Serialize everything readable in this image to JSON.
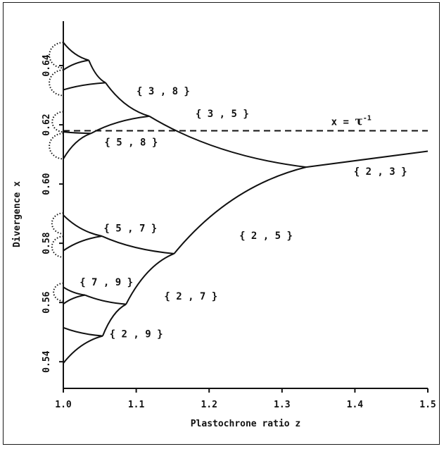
{
  "chart_data": {
    "type": "line",
    "xlabel": "Plastochrone ratio z",
    "ylabel": "Divergence x",
    "xlim": [
      1.0,
      1.5
    ],
    "ylim": [
      0.531,
      0.655
    ],
    "x_ticks": [
      1.0,
      1.1,
      1.2,
      1.3,
      1.4,
      1.5
    ],
    "x_tick_labels": [
      "1.0",
      "1.1",
      "1.2",
      "1.3",
      "1.4",
      "1.5"
    ],
    "y_ticks": [
      0.54,
      0.56,
      0.58,
      0.6,
      0.62,
      0.64
    ],
    "y_tick_labels": [
      "0.54",
      "0.56",
      "0.58",
      "0.60",
      "0.62",
      "0.64"
    ],
    "reference_line": {
      "y": 0.618,
      "label_prefix": "x = ",
      "label_symbol": "τ",
      "label_exp": "-1",
      "style": "dashed"
    },
    "nodes": {
      "n23": {
        "x": 1.333,
        "y": 0.6057
      },
      "n35": {
        "x": 1.118,
        "y": 0.6229
      },
      "n38": {
        "x": 1.058,
        "y": 0.6342
      },
      "n58": {
        "x": 1.038,
        "y": 0.6171
      },
      "n313": {
        "x": 1.035,
        "y": 0.6418
      },
      "n25": {
        "x": 1.152,
        "y": 0.5765
      },
      "n57": {
        "x": 1.053,
        "y": 0.5824
      },
      "n27": {
        "x": 1.086,
        "y": 0.5594
      },
      "n79": {
        "x": 1.03,
        "y": 0.5625
      },
      "n29": {
        "x": 1.054,
        "y": 0.5487
      }
    },
    "branches": [
      {
        "from": "n23",
        "to": [
          1.5,
          0.6111
        ]
      },
      {
        "from": "n23",
        "to": "n35"
      },
      {
        "from": "n23",
        "to": "n25"
      },
      {
        "from": "n35",
        "to": "n38"
      },
      {
        "from": "n35",
        "to": "n58"
      },
      {
        "from": "n38",
        "to": "n313"
      },
      {
        "from": "n38",
        "to": [
          1.0,
          0.6318
        ]
      },
      {
        "from": "n313",
        "to": [
          1.0,
          0.6478
        ]
      },
      {
        "from": "n313",
        "to": [
          1.0,
          0.6385
        ]
      },
      {
        "from": "n58",
        "to": [
          1.0,
          0.6176
        ]
      },
      {
        "from": "n58",
        "to": [
          1.0,
          0.6085
        ]
      },
      {
        "from": "n25",
        "to": "n57"
      },
      {
        "from": "n25",
        "to": "n27"
      },
      {
        "from": "n57",
        "to": [
          1.0,
          0.5895
        ]
      },
      {
        "from": "n57",
        "to": [
          1.0,
          0.5775
        ]
      },
      {
        "from": "n27",
        "to": "n79"
      },
      {
        "from": "n27",
        "to": "n29"
      },
      {
        "from": "n79",
        "to": [
          1.0,
          0.5652
        ]
      },
      {
        "from": "n79",
        "to": [
          1.0,
          0.5595
        ]
      },
      {
        "from": "n29",
        "to": [
          1.0,
          0.5515
        ]
      },
      {
        "from": "n29",
        "to": [
          1.0,
          0.5395
        ]
      }
    ],
    "dotted_loops": [
      {
        "center": [
          1.0,
          0.6435
        ],
        "r": 0.0043
      },
      {
        "center": [
          1.0,
          0.6342
        ],
        "r": 0.0043
      },
      {
        "center": [
          1.0,
          0.621
        ],
        "r": 0.0034
      },
      {
        "center": [
          1.0,
          0.6128
        ],
        "r": 0.0043
      },
      {
        "center": [
          1.0,
          0.5867
        ],
        "r": 0.0035
      },
      {
        "center": [
          1.0,
          0.5788
        ],
        "r": 0.0035
      },
      {
        "center": [
          1.0,
          0.5635
        ],
        "r": 0.003
      }
    ],
    "branch_labels": [
      {
        "text": "{ 3 , 8 }",
        "x": 1.137,
        "y": 0.6303
      },
      {
        "text": "{ 3 , 5 }",
        "x": 1.218,
        "y": 0.6226
      },
      {
        "text": "{ 5 , 8 }",
        "x": 1.093,
        "y": 0.613
      },
      {
        "text": "{ 2 , 3 }",
        "x": 1.435,
        "y": 0.6031
      },
      {
        "text": "{ 5 , 7 }",
        "x": 1.092,
        "y": 0.5839
      },
      {
        "text": "{ 2 , 5 }",
        "x": 1.278,
        "y": 0.5815
      },
      {
        "text": "{ 7 , 9 }",
        "x": 1.059,
        "y": 0.5658
      },
      {
        "text": "{ 2 , 7 }",
        "x": 1.175,
        "y": 0.561
      },
      {
        "text": "{ 2 , 9 }",
        "x": 1.1,
        "y": 0.5483
      }
    ]
  }
}
